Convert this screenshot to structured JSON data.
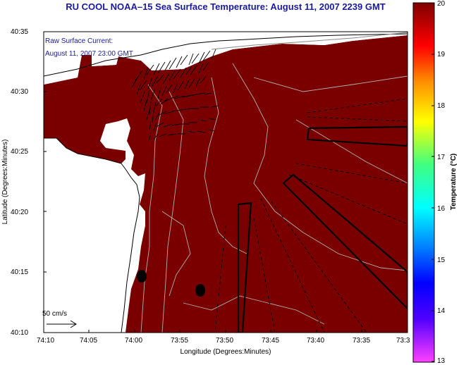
{
  "title": "RU COOL  NOAA–15  Sea Surface Temperature:  August 11, 2007 2239 GMT",
  "map": {
    "xlabel": "Longitude (Degrees:Minutes)",
    "ylabel": "Latitude (Degrees:Minutes)",
    "lon_ticks": [
      "74:10",
      "74:05",
      "74:00",
      "73:55",
      "73:50",
      "73:45",
      "73:40",
      "73:35",
      "73:3"
    ],
    "lat_ticks": [
      "40:35",
      "40:30",
      "40:25",
      "40:20",
      "40:15",
      "40:10"
    ],
    "current_label_line1": "Raw Surface Current:",
    "current_label_line2": "August 11, 2007 23:00 GMT",
    "scale_label": "50 cm/s",
    "colors": {
      "sst_field": "#7a0000",
      "land": "#ffffff",
      "title": "#1a1a9c",
      "contour": "#b0b0b0"
    }
  },
  "colorbar": {
    "label": "Temperature (°C)",
    "ticks": [
      "20",
      "19",
      "18",
      "17",
      "16",
      "15",
      "14",
      "13"
    ],
    "range": [
      13,
      20
    ]
  }
}
